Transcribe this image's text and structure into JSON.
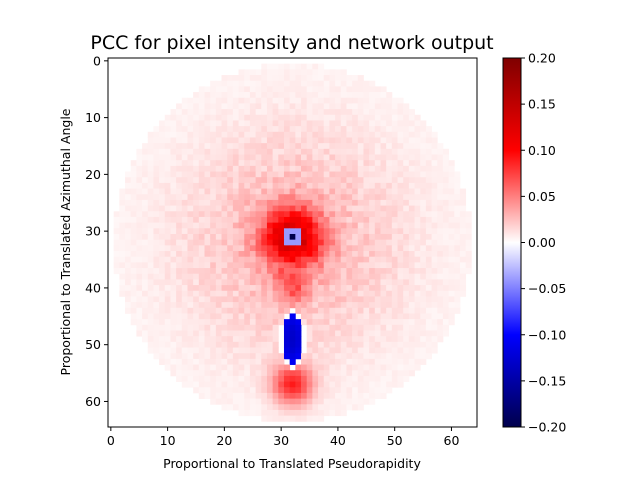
{
  "chart_data": {
    "type": "heatmap",
    "title": "PCC for pixel intensity and network output",
    "xlabel": "Proportional to Translated Pseudorapidity",
    "ylabel": "Proportional to Translated Azimuthal Angle",
    "xlim": [
      -0.5,
      64.5
    ],
    "ylim": [
      64.5,
      -0.5
    ],
    "x_ticks": [
      0,
      10,
      20,
      30,
      40,
      50,
      60
    ],
    "y_ticks": [
      0,
      10,
      20,
      30,
      40,
      50,
      60
    ],
    "grid": false,
    "colormap": "seismic",
    "colorbar": {
      "range": [
        -0.2,
        0.2
      ],
      "ticks": [
        0.2,
        0.15,
        0.1,
        0.05,
        0.0,
        -0.05,
        -0.1,
        -0.15,
        -0.2
      ],
      "tick_labels": [
        "0.20",
        "0.15",
        "0.10",
        "0.05",
        "0.00",
        "−0.05",
        "−0.10",
        "−0.15",
        "−0.20"
      ]
    },
    "grid_size": [
      65,
      65
    ],
    "features": {
      "disk": {
        "center": [
          32,
          32
        ],
        "radius": 31,
        "edge_value": 0.005,
        "center_value": 0.04
      },
      "ring_hotspot": {
        "center": [
          32,
          31
        ],
        "peak_value": 0.11,
        "width": 3.5
      },
      "center_pixel": {
        "position": [
          32,
          31
        ],
        "value": -0.2
      },
      "center_neighbors": {
        "value": -0.04
      },
      "negative_blob": {
        "center": [
          32,
          49
        ],
        "semi_axes": [
          1.8,
          4.2
        ],
        "core_value": -0.13
      },
      "lower_hotspot": {
        "center": [
          32,
          57
        ],
        "peak_value": 0.08,
        "width": 2.5
      },
      "mid_hotspot": {
        "center": [
          32,
          40
        ],
        "peak_value": 0.04,
        "width": 2.0
      }
    }
  }
}
